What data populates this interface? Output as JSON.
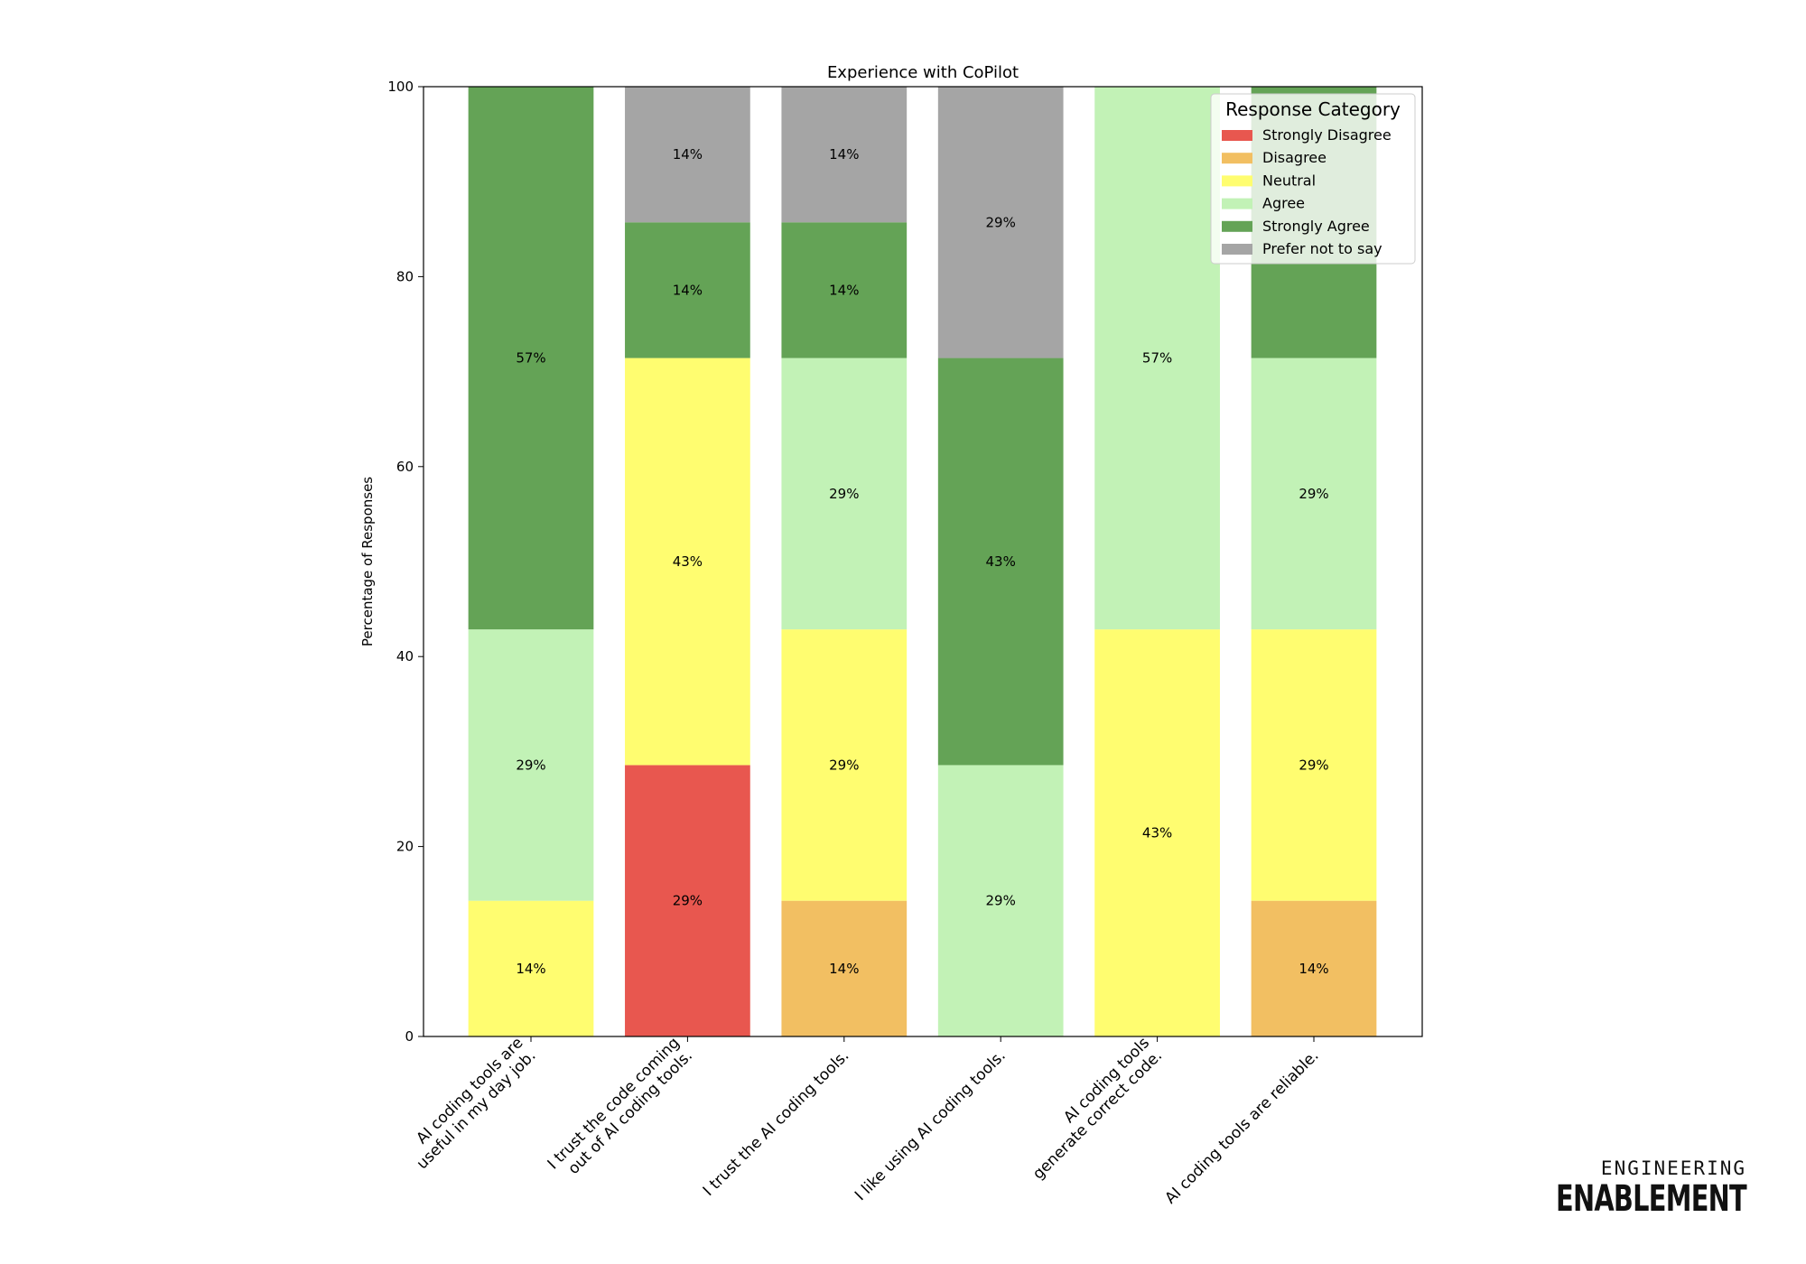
{
  "chart_data": {
    "type": "bar",
    "stacked": true,
    "title": "Experience with CoPilot",
    "xlabel": "",
    "ylabel": "Percentage of Responses",
    "ylim": [
      0,
      100
    ],
    "yticks": [
      0,
      20,
      40,
      60,
      80,
      100
    ],
    "grid": false,
    "legend": {
      "title": "Response Category",
      "position": "top-right"
    },
    "categories": [
      "AI coding tools are\nuseful in my day job.",
      "I trust the code coming\nout of AI coding tools.",
      "I trust the AI coding tools.",
      "I like using AI coding tools.",
      "AI coding tools\ngenerate correct code.",
      "AI coding tools are reliable."
    ],
    "series": [
      {
        "name": "Strongly Disagree",
        "color": "#e8574f",
        "values": [
          0,
          28.57,
          0,
          0,
          0,
          0
        ]
      },
      {
        "name": "Disagree",
        "color": "#f2bf62",
        "values": [
          0,
          0,
          14.29,
          0,
          0,
          14.29
        ]
      },
      {
        "name": "Neutral",
        "color": "#fffd70",
        "values": [
          14.29,
          42.86,
          28.57,
          0,
          42.86,
          28.57
        ]
      },
      {
        "name": "Agree",
        "color": "#c2f2b6",
        "values": [
          28.57,
          0,
          28.57,
          28.57,
          57.14,
          28.57
        ]
      },
      {
        "name": "Strongly Agree",
        "color": "#64a356",
        "values": [
          57.14,
          14.29,
          14.29,
          42.86,
          0,
          28.57
        ]
      },
      {
        "name": "Prefer not to say",
        "color": "#a5a5a5",
        "values": [
          0,
          14.29,
          14.29,
          28.57,
          0,
          0
        ]
      }
    ],
    "data_labels": [
      [
        "",
        "29%",
        "",
        "",
        "",
        ""
      ],
      [
        "",
        "",
        "14%",
        "",
        "",
        "14%"
      ],
      [
        "14%",
        "43%",
        "29%",
        "",
        "43%",
        "29%"
      ],
      [
        "29%",
        "",
        "29%",
        "29%",
        "57%",
        "29%"
      ],
      [
        "57%",
        "14%",
        "14%",
        "43%",
        "",
        ""
      ],
      [
        "",
        "14%",
        "14%",
        "29%",
        "",
        ""
      ]
    ]
  },
  "branding": {
    "line1": "ENGINEERING",
    "line2": "ENABLEMENT"
  }
}
